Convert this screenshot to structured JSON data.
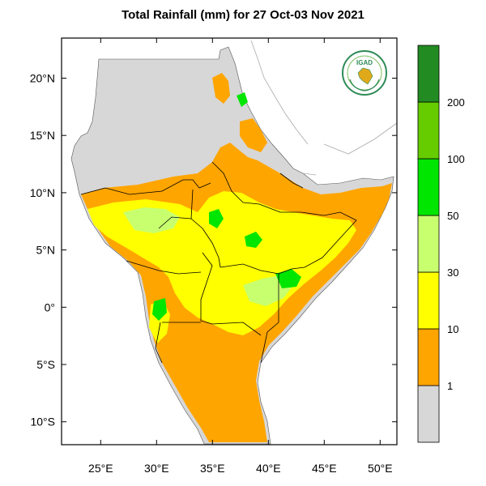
{
  "title": "Total Rainfall (mm) for 27 Oct-03 Nov 2021",
  "map": {
    "lon_range": [
      21.5,
      51.5
    ],
    "lat_range": [
      -12,
      23.5
    ],
    "x_ticks": [
      {
        "value": 25,
        "label": "25°E"
      },
      {
        "value": 30,
        "label": "30°E"
      },
      {
        "value": 35,
        "label": "35°E"
      },
      {
        "value": 40,
        "label": "40°E"
      },
      {
        "value": 45,
        "label": "45°E"
      },
      {
        "value": 50,
        "label": "50°E"
      }
    ],
    "y_ticks": [
      {
        "value": 20,
        "label": "20°N"
      },
      {
        "value": 15,
        "label": "15°N"
      },
      {
        "value": 10,
        "label": "10°N"
      },
      {
        "value": 5,
        "label": "5°N"
      },
      {
        "value": 0,
        "label": "0°"
      },
      {
        "value": -5,
        "label": "5°S"
      },
      {
        "value": -10,
        "label": "10°S"
      }
    ],
    "logo_text": "IGAD",
    "no_data_color": "#d7d7d7",
    "land_outline_color": "#000000"
  },
  "legend": {
    "bins": [
      {
        "color": "#d7d7d7",
        "label": "1"
      },
      {
        "color": "#ffa500",
        "label": "10"
      },
      {
        "color": "#ffff00",
        "label": "30"
      },
      {
        "color": "#c8ff6e",
        "label": "50"
      },
      {
        "color": "#00e600",
        "label": "100"
      },
      {
        "color": "#66cc00",
        "label": "200"
      },
      {
        "color": "#228b22",
        "label": ""
      }
    ]
  }
}
